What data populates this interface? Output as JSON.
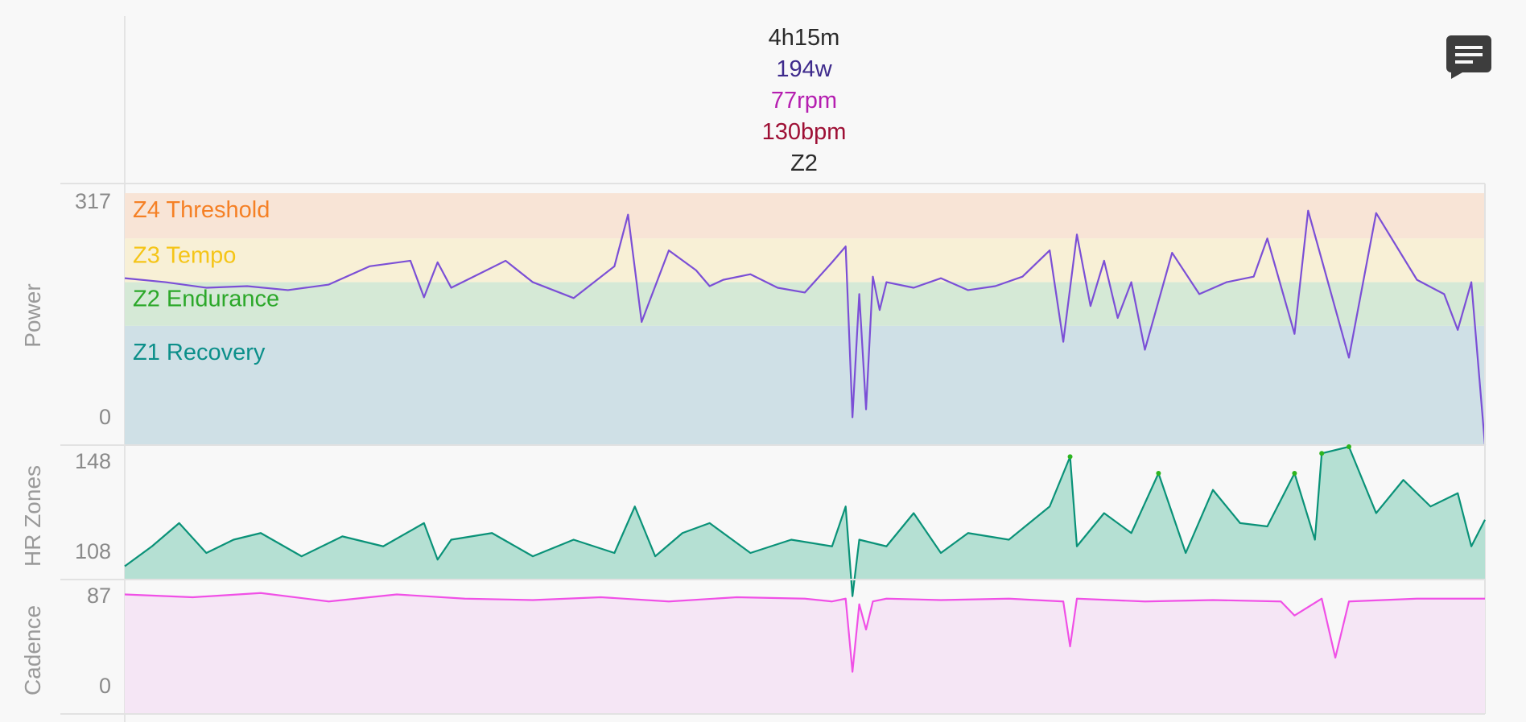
{
  "summary": {
    "duration": "4h15m",
    "power": "194w",
    "cadence": "77rpm",
    "heart_rate": "130bpm",
    "zone": "Z2"
  },
  "colors": {
    "power_line": "#7b4fd6",
    "hr_line": "#0a9278",
    "hr_peak": "#2db51f",
    "cadence_line": "#f050e6",
    "summary_power": "#3e2a8c",
    "summary_cadence": "#b51eb0",
    "summary_hr": "#9e1035",
    "summary_text": "#2b2b2b",
    "z1": "#0c8f8a",
    "z2": "#2ca82a",
    "z3": "#f5c518",
    "z4": "#f58025"
  },
  "icons": {
    "comment": "comment-icon"
  },
  "chart_data": [
    {
      "type": "line",
      "ylabel": "Power",
      "ylim": [
        0,
        317
      ],
      "yticks": [
        "317",
        "0"
      ],
      "zones": [
        {
          "name": "Z4 Threshold",
          "from": 260,
          "to": 317,
          "fill": "#f8e4d6"
        },
        {
          "name": "Z3 Tempo",
          "from": 205,
          "to": 260,
          "fill": "#f8f0d6"
        },
        {
          "name": "Z2 Endurance",
          "from": 150,
          "to": 205,
          "fill": "#d5e9d6"
        },
        {
          "name": "Z1 Recovery",
          "from": 0,
          "to": 150,
          "fill": "#cfe0e6"
        }
      ],
      "x": [
        0,
        0.03,
        0.06,
        0.09,
        0.12,
        0.15,
        0.18,
        0.21,
        0.22,
        0.23,
        0.24,
        0.26,
        0.28,
        0.3,
        0.33,
        0.36,
        0.37,
        0.38,
        0.4,
        0.42,
        0.43,
        0.44,
        0.46,
        0.48,
        0.5,
        0.52,
        0.53,
        0.535,
        0.54,
        0.545,
        0.55,
        0.555,
        0.56,
        0.58,
        0.6,
        0.62,
        0.64,
        0.66,
        0.68,
        0.69,
        0.7,
        0.71,
        0.72,
        0.73,
        0.74,
        0.75,
        0.77,
        0.79,
        0.81,
        0.83,
        0.84,
        0.86,
        0.87,
        0.9,
        0.92,
        0.95,
        0.97,
        0.98,
        0.99,
        1.0
      ],
      "series": [
        {
          "values": [
            210,
            205,
            198,
            200,
            195,
            202,
            225,
            232,
            186,
            230,
            198,
            215,
            232,
            205,
            185,
            225,
            290,
            155,
            245,
            220,
            200,
            208,
            215,
            198,
            192,
            230,
            250,
            35,
            190,
            45,
            212,
            170,
            205,
            198,
            210,
            195,
            200,
            212,
            245,
            130,
            265,
            175,
            232,
            160,
            205,
            120,
            242,
            190,
            205,
            212,
            260,
            140,
            295,
            110,
            292,
            208,
            190,
            145,
            205,
            0
          ]
        }
      ]
    },
    {
      "type": "area",
      "ylabel": "HR Zones",
      "ylim": [
        108,
        148
      ],
      "yticks": [
        "148",
        "108"
      ],
      "x": [
        0,
        0.02,
        0.04,
        0.06,
        0.08,
        0.1,
        0.13,
        0.16,
        0.19,
        0.22,
        0.23,
        0.24,
        0.27,
        0.3,
        0.33,
        0.36,
        0.375,
        0.39,
        0.41,
        0.43,
        0.46,
        0.49,
        0.52,
        0.53,
        0.535,
        0.54,
        0.56,
        0.58,
        0.6,
        0.62,
        0.65,
        0.68,
        0.695,
        0.7,
        0.72,
        0.74,
        0.76,
        0.78,
        0.8,
        0.82,
        0.84,
        0.86,
        0.875,
        0.88,
        0.9,
        0.92,
        0.94,
        0.96,
        0.98,
        0.99,
        1.0
      ],
      "series": [
        {
          "values": [
            112,
            118,
            125,
            116,
            120,
            122,
            115,
            121,
            118,
            125,
            114,
            120,
            122,
            115,
            120,
            116,
            130,
            115,
            122,
            125,
            116,
            120,
            118,
            130,
            103,
            120,
            118,
            128,
            116,
            122,
            120,
            130,
            145,
            118,
            128,
            122,
            140,
            116,
            135,
            125,
            124,
            140,
            120,
            146,
            148,
            128,
            138,
            130,
            134,
            118,
            126
          ]
        }
      ]
    },
    {
      "type": "area",
      "ylabel": "Cadence",
      "ylim": [
        0,
        87
      ],
      "yticks": [
        "87",
        "0"
      ],
      "x": [
        0,
        0.05,
        0.1,
        0.15,
        0.2,
        0.25,
        0.3,
        0.35,
        0.4,
        0.45,
        0.5,
        0.52,
        0.53,
        0.535,
        0.54,
        0.545,
        0.55,
        0.56,
        0.6,
        0.65,
        0.69,
        0.695,
        0.7,
        0.75,
        0.8,
        0.85,
        0.86,
        0.88,
        0.89,
        0.9,
        0.95,
        1.0
      ],
      "series": [
        {
          "values": [
            85,
            83,
            86,
            80,
            85,
            82,
            81,
            83,
            80,
            83,
            82,
            80,
            82,
            30,
            78,
            60,
            80,
            82,
            81,
            82,
            80,
            48,
            82,
            80,
            81,
            80,
            70,
            82,
            40,
            80,
            82,
            82
          ]
        }
      ]
    }
  ]
}
